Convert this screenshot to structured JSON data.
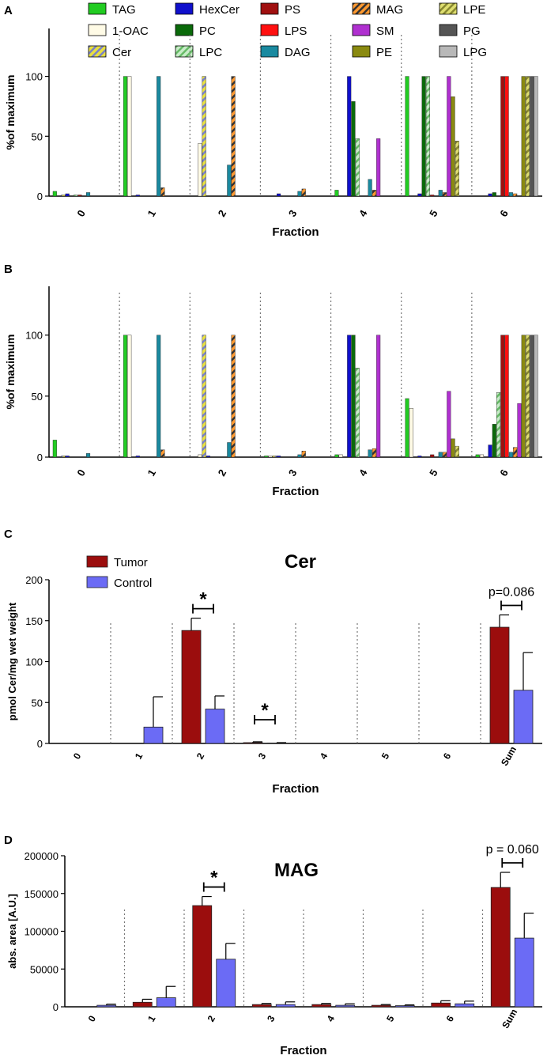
{
  "legend": [
    {
      "key": "TAG",
      "label": "TAG",
      "color": "#22cc22",
      "pattern": "solid"
    },
    {
      "key": "1-OAC",
      "label": "1-OAC",
      "color": "#fffbe6",
      "pattern": "solid"
    },
    {
      "key": "Cer",
      "label": "Cer",
      "color": "#e8e040",
      "pattern": "stripe",
      "stripe": "#7a82c8"
    },
    {
      "key": "HexCer",
      "label": "HexCer",
      "color": "#1010cc",
      "pattern": "solid"
    },
    {
      "key": "PC",
      "label": "PC",
      "color": "#0a6a0a",
      "pattern": "solid"
    },
    {
      "key": "LPC",
      "label": "LPC",
      "color": "#c8ecc8",
      "pattern": "stripe",
      "stripe": "#66bb66"
    },
    {
      "key": "PS",
      "label": "PS",
      "color": "#a01010",
      "pattern": "solid"
    },
    {
      "key": "LPS",
      "label": "LPS",
      "color": "#ff1010",
      "pattern": "solid"
    },
    {
      "key": "DAG",
      "label": "DAG",
      "color": "#1a8aa0",
      "pattern": "solid"
    },
    {
      "key": "MAG",
      "label": "MAG",
      "color": "#ff9930",
      "pattern": "stripe",
      "stripe": "#333333"
    },
    {
      "key": "SM",
      "label": "SM",
      "color": "#b030d0",
      "pattern": "solid"
    },
    {
      "key": "PE",
      "label": "PE",
      "color": "#8a8a10",
      "pattern": "solid"
    },
    {
      "key": "LPE",
      "label": "LPE",
      "color": "#dede70",
      "pattern": "stripe",
      "stripe": "#888830"
    },
    {
      "key": "PG",
      "label": "PG",
      "color": "#555555",
      "pattern": "solid"
    },
    {
      "key": "LPG",
      "label": "LPG",
      "color": "#b8b8b8",
      "pattern": "solid"
    }
  ],
  "chart_data": [
    {
      "panel": "A",
      "type": "bar",
      "title": "",
      "xlabel": "Fraction",
      "ylabel": "%of maximum",
      "ylim": [
        0,
        140
      ],
      "yticks": [
        0,
        50,
        100
      ],
      "categories": [
        "0",
        "1",
        "2",
        "3",
        "4",
        "5",
        "6"
      ],
      "series_order": [
        "TAG",
        "1-OAC",
        "Cer",
        "HexCer",
        "PC",
        "LPC",
        "PS",
        "LPS",
        "DAG",
        "MAG",
        "SM",
        "PE",
        "LPE",
        "PG",
        "LPG"
      ],
      "values": {
        "TAG": [
          4,
          100,
          0,
          0,
          5,
          100,
          0
        ],
        "1-OAC": [
          0,
          100,
          44,
          0,
          0,
          0,
          0
        ],
        "Cer": [
          1,
          0,
          100,
          0,
          0,
          0,
          0
        ],
        "HexCer": [
          2,
          1,
          0,
          2,
          100,
          2,
          2
        ],
        "PC": [
          0,
          0,
          0,
          0,
          79,
          100,
          3
        ],
        "LPC": [
          1,
          0,
          0,
          0,
          48,
          100,
          0
        ],
        "PS": [
          1,
          0,
          0,
          0,
          0,
          1,
          100
        ],
        "LPS": [
          0,
          0,
          0,
          0,
          0,
          0,
          100
        ],
        "DAG": [
          3,
          100,
          26,
          4,
          14,
          5,
          3
        ],
        "MAG": [
          0,
          7,
          100,
          6,
          5,
          3,
          2
        ],
        "SM": [
          0,
          0,
          0,
          0,
          48,
          100,
          0
        ],
        "PE": [
          0,
          0,
          0,
          0,
          0,
          83,
          100
        ],
        "LPE": [
          0,
          0,
          0,
          0,
          0,
          46,
          100
        ],
        "PG": [
          0,
          0,
          0,
          0,
          0,
          0,
          100
        ],
        "LPG": [
          0,
          0,
          0,
          0,
          0,
          0,
          100
        ]
      }
    },
    {
      "panel": "B",
      "type": "bar",
      "title": "",
      "xlabel": "Fraction",
      "ylabel": "%of maximum",
      "ylim": [
        0,
        140
      ],
      "yticks": [
        0,
        50,
        100
      ],
      "categories": [
        "0",
        "1",
        "2",
        "3",
        "4",
        "5",
        "6"
      ],
      "series_order": [
        "TAG",
        "1-OAC",
        "Cer",
        "HexCer",
        "PC",
        "LPC",
        "PS",
        "LPS",
        "DAG",
        "MAG",
        "SM",
        "PE",
        "LPE",
        "PG",
        "LPG"
      ],
      "values": {
        "TAG": [
          14,
          100,
          0,
          1,
          2,
          48,
          2
        ],
        "1-OAC": [
          0,
          100,
          2,
          1,
          2,
          40,
          2
        ],
        "Cer": [
          1,
          0,
          100,
          1,
          0,
          0,
          0
        ],
        "HexCer": [
          1,
          1,
          1,
          1,
          100,
          1,
          10
        ],
        "PC": [
          0,
          0,
          0,
          0,
          100,
          0,
          27
        ],
        "LPC": [
          0,
          0,
          0,
          0,
          73,
          0,
          53
        ],
        "PS": [
          0,
          0,
          0,
          0,
          0,
          2,
          100
        ],
        "LPS": [
          0,
          0,
          0,
          0,
          0,
          0,
          100
        ],
        "DAG": [
          3,
          100,
          12,
          2,
          6,
          4,
          4
        ],
        "MAG": [
          0,
          6,
          100,
          5,
          7,
          4,
          8
        ],
        "SM": [
          0,
          0,
          0,
          0,
          100,
          54,
          44
        ],
        "PE": [
          0,
          0,
          0,
          0,
          0,
          15,
          100
        ],
        "LPE": [
          0,
          0,
          0,
          0,
          0,
          9,
          100
        ],
        "PG": [
          0,
          0,
          0,
          0,
          0,
          0,
          100
        ],
        "LPG": [
          0,
          0,
          0,
          0,
          0,
          0,
          100
        ]
      }
    },
    {
      "panel": "C",
      "type": "bar",
      "title": "Cer",
      "xlabel": "Fraction",
      "ylabel": "pmol Cer/mg wet weight",
      "ylim": [
        0,
        200
      ],
      "yticks": [
        0,
        50,
        100,
        150,
        200
      ],
      "categories": [
        "0",
        "1",
        "2",
        "3",
        "4",
        "5",
        "6",
        "Sum"
      ],
      "series": [
        {
          "name": "Tumor",
          "color": "#9b0d0d",
          "values": [
            0,
            0,
            138,
            1,
            0,
            0,
            0,
            142
          ],
          "errors": [
            0,
            0,
            15,
            1,
            0,
            0,
            0,
            15
          ]
        },
        {
          "name": "Control",
          "color": "#6b6bf5",
          "values": [
            0,
            20,
            42,
            0.5,
            0,
            0,
            0,
            65
          ],
          "errors": [
            0,
            37,
            16,
            0.5,
            0,
            0,
            0,
            46
          ]
        }
      ],
      "annotations": [
        {
          "category": "2",
          "text": "*"
        },
        {
          "category": "3",
          "text": "*"
        },
        {
          "category": "Sum",
          "text": "p=0.086"
        }
      ]
    },
    {
      "panel": "D",
      "type": "bar",
      "title": "MAG",
      "xlabel": "Fraction",
      "ylabel": "abs. area [A.U.]",
      "ylim": [
        0,
        200000
      ],
      "yticks": [
        0,
        50000,
        100000,
        150000,
        200000
      ],
      "categories": [
        "0",
        "1",
        "2",
        "3",
        "4",
        "5",
        "6",
        "Sum"
      ],
      "series": [
        {
          "name": "Tumor",
          "color": "#9b0d0d",
          "values": [
            0,
            6000,
            134000,
            3000,
            3000,
            2000,
            5000,
            158000
          ],
          "errors": [
            0,
            4000,
            12000,
            1500,
            1500,
            1000,
            3000,
            20000
          ]
        },
        {
          "name": "Control",
          "color": "#6b6bf5",
          "values": [
            2000,
            12000,
            63000,
            3000,
            2000,
            1500,
            4000,
            91000
          ],
          "errors": [
            1500,
            15000,
            21000,
            3500,
            2000,
            1000,
            3500,
            33000
          ]
        }
      ],
      "annotations": [
        {
          "category": "2",
          "text": "*"
        },
        {
          "category": "Sum",
          "text": "p = 0.060"
        }
      ]
    }
  ]
}
